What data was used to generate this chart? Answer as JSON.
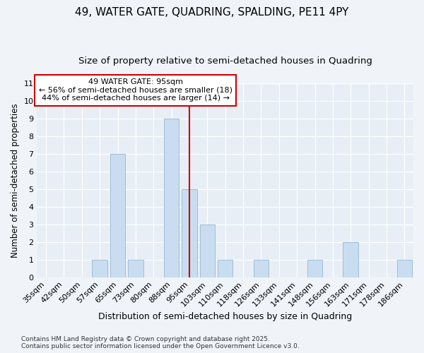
{
  "title1": "49, WATER GATE, QUADRING, SPALDING, PE11 4PY",
  "title2": "Size of property relative to semi-detached houses in Quadring",
  "xlabel": "Distribution of semi-detached houses by size in Quadring",
  "ylabel": "Number of semi-detached properties",
  "categories": [
    "35sqm",
    "42sqm",
    "50sqm",
    "57sqm",
    "65sqm",
    "73sqm",
    "80sqm",
    "88sqm",
    "95sqm",
    "103sqm",
    "110sqm",
    "118sqm",
    "126sqm",
    "133sqm",
    "141sqm",
    "148sqm",
    "156sqm",
    "163sqm",
    "171sqm",
    "178sqm",
    "186sqm"
  ],
  "values": [
    0,
    0,
    0,
    1,
    7,
    1,
    0,
    9,
    5,
    3,
    1,
    0,
    1,
    0,
    0,
    1,
    0,
    2,
    0,
    0,
    1
  ],
  "bar_color": "#c8ddef",
  "bar_edge_color": "#a0bdd8",
  "vline_x": 8,
  "ylim": [
    0,
    11
  ],
  "yticks": [
    0,
    1,
    2,
    3,
    4,
    5,
    6,
    7,
    8,
    9,
    10,
    11
  ],
  "annotation_text1": "49 WATER GATE: 95sqm",
  "annotation_text2": "← 56% of semi-detached houses are smaller (18)",
  "annotation_text3": "44% of semi-detached houses are larger (14) →",
  "annotation_box_color": "#ffffff",
  "annotation_box_edge": "#cc0000",
  "vline_color": "#cc0000",
  "footnote1": "Contains HM Land Registry data © Crown copyright and database right 2025.",
  "footnote2": "Contains public sector information licensed under the Open Government Licence v3.0.",
  "fig_bg_color": "#f0f4f8",
  "plot_bg": "#e8eef5",
  "grid_color": "#ffffff",
  "title_fontsize": 11,
  "subtitle_fontsize": 9.5,
  "tick_fontsize": 8,
  "ylabel_fontsize": 8.5,
  "xlabel_fontsize": 9,
  "ann_fontsize": 8,
  "footnote_fontsize": 6.5
}
